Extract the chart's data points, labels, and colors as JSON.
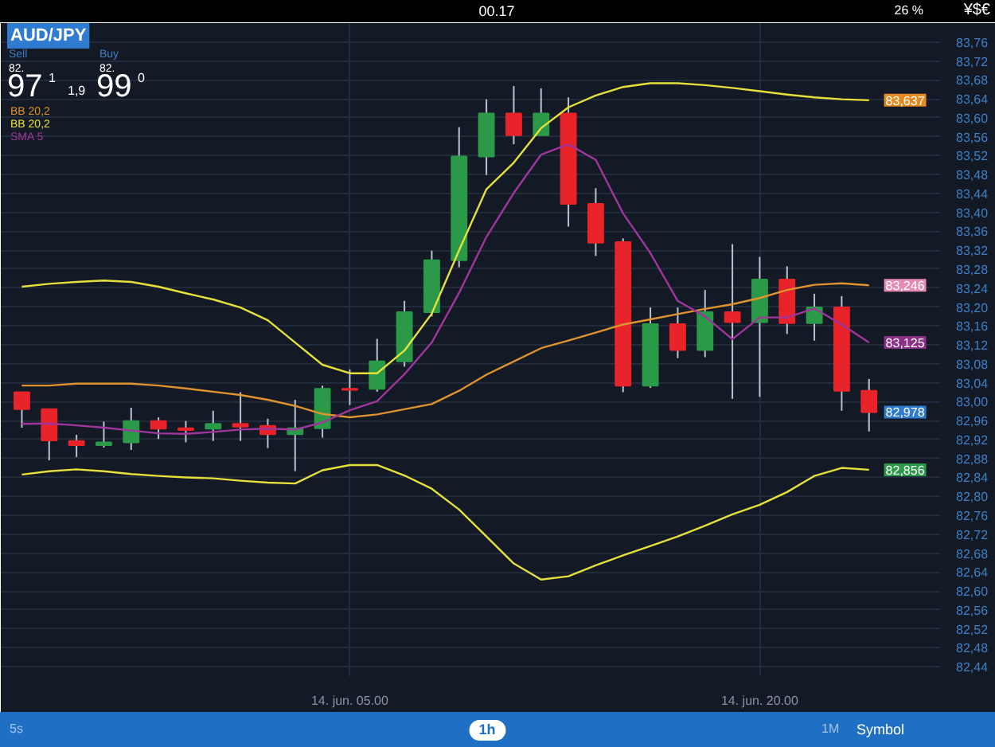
{
  "chart_data": {
    "type": "candlestick",
    "title": "AUD/JPY",
    "categories": [
      null,
      null,
      null,
      null,
      null,
      null,
      null,
      null,
      null,
      null,
      null,
      null,
      "14. jun. 05.00",
      null,
      null,
      null,
      null,
      null,
      null,
      null,
      null,
      null,
      null,
      null,
      null,
      null,
      null,
      "14. jun. 20.00",
      null,
      null,
      null,
      null
    ],
    "ohlc": [
      [
        83.02,
        83.02,
        82.945,
        82.984
      ],
      [
        82.984,
        82.984,
        82.876,
        82.918
      ],
      [
        82.917,
        82.93,
        82.883,
        82.908
      ],
      [
        82.908,
        82.958,
        82.903,
        82.914
      ],
      [
        82.914,
        82.987,
        82.898,
        82.959
      ],
      [
        82.959,
        82.967,
        82.921,
        82.943
      ],
      [
        82.944,
        82.959,
        82.914,
        82.94
      ],
      [
        82.943,
        82.981,
        82.917,
        82.953
      ],
      [
        82.953,
        83.02,
        82.917,
        82.947
      ],
      [
        82.949,
        82.964,
        82.902,
        82.931
      ],
      [
        82.931,
        83.004,
        82.853,
        82.944
      ],
      [
        82.944,
        83.034,
        82.924,
        83.027
      ],
      [
        83.027,
        83.068,
        82.993,
        83.025
      ],
      [
        83.027,
        83.133,
        83.021,
        83.085
      ],
      [
        83.085,
        83.213,
        83.074,
        83.189
      ],
      [
        83.189,
        83.319,
        83.18,
        83.299
      ],
      [
        83.299,
        83.58,
        83.284,
        83.518
      ],
      [
        83.518,
        83.639,
        83.479,
        83.609
      ],
      [
        83.609,
        83.667,
        83.544,
        83.563
      ],
      [
        83.563,
        83.662,
        83.563,
        83.609
      ],
      [
        83.609,
        83.643,
        83.37,
        83.418
      ],
      [
        83.418,
        83.451,
        83.308,
        83.336
      ],
      [
        83.337,
        83.345,
        83.02,
        83.034
      ],
      [
        83.034,
        83.199,
        83.029,
        83.164
      ],
      [
        83.164,
        83.199,
        83.092,
        83.109
      ],
      [
        83.109,
        83.236,
        83.094,
        83.189
      ],
      [
        83.189,
        83.333,
        83.006,
        83.168
      ],
      [
        83.168,
        83.306,
        83.01,
        83.258
      ],
      [
        83.258,
        83.286,
        83.143,
        83.166
      ],
      [
        83.166,
        83.228,
        83.129,
        83.199
      ],
      [
        83.199,
        83.223,
        82.981,
        83.023
      ],
      [
        83.023,
        83.048,
        82.937,
        82.978
      ]
    ],
    "colors": [
      "#e8232a",
      "#e8232a",
      "#e8232a",
      "#2a9a48",
      "#2a9a48",
      "#e8232a",
      "#e8232a",
      "#2a9a48",
      "#e8232a",
      "#e8232a",
      "#2a9a48",
      "#2a9a48",
      "#e8232a",
      "#2a9a48",
      "#2a9a48",
      "#2a9a48",
      "#2a9a48",
      "#2a9a48",
      "#e8232a",
      "#2a9a48",
      "#e8232a",
      "#e8232a",
      "#e8232a",
      "#2a9a48",
      "#e8232a",
      "#2a9a48",
      "#e8232a",
      "#2a9a48",
      "#e8232a",
      "#2a9a48",
      "#e8232a",
      "#e8232a"
    ],
    "series": [
      {
        "name": "BB 20,2",
        "type": "line",
        "color": "#e0922e",
        "values": [
          83.034,
          83.034,
          83.038,
          83.038,
          83.038,
          83.034,
          83.028,
          83.021,
          83.014,
          83.004,
          82.991,
          82.974,
          82.967,
          82.973,
          82.984,
          82.995,
          83.023,
          83.057,
          83.085,
          83.113,
          83.129,
          83.146,
          83.163,
          83.174,
          83.185,
          83.196,
          83.206,
          83.219,
          83.236,
          83.247,
          83.25,
          83.246
        ]
      },
      {
        "name": "BB 20,2",
        "type": "line",
        "color": "#e6e03a",
        "values": [
          83.243,
          83.249,
          83.253,
          83.256,
          83.253,
          83.243,
          83.229,
          83.216,
          83.199,
          83.172,
          83.125,
          83.078,
          83.06,
          83.06,
          83.108,
          83.186,
          83.32,
          83.449,
          83.505,
          83.578,
          83.622,
          83.647,
          83.665,
          83.673,
          83.673,
          83.669,
          83.663,
          83.656,
          83.649,
          83.643,
          83.639,
          83.637
        ]
      },
      {
        "type": "line",
        "color": "#e6e03a",
        "values": [
          82.846,
          82.853,
          82.857,
          82.853,
          82.847,
          82.843,
          82.84,
          82.838,
          82.833,
          82.829,
          82.827,
          82.855,
          82.866,
          82.866,
          82.844,
          82.816,
          82.772,
          82.715,
          82.658,
          82.624,
          82.631,
          82.654,
          82.675,
          82.695,
          82.715,
          82.738,
          82.762,
          82.782,
          82.809,
          82.843,
          82.86,
          82.856
        ]
      },
      {
        "name": "SMA 5",
        "type": "line",
        "color": "#a0359c",
        "values": [
          82.953,
          82.954,
          82.95,
          82.945,
          82.939,
          82.933,
          82.932,
          82.936,
          82.941,
          82.943,
          82.941,
          82.956,
          82.982,
          83.001,
          83.058,
          83.125,
          83.23,
          83.348,
          83.441,
          83.522,
          83.544,
          83.511,
          83.398,
          83.314,
          83.213,
          83.18,
          83.132,
          83.178,
          83.178,
          83.197,
          83.163,
          83.125
        ]
      }
    ],
    "ylim": [
      82.42,
      83.8
    ],
    "yticks": [
      {
        "value": 82.44,
        "label": "82,44"
      },
      {
        "value": 82.48,
        "label": "82,48"
      },
      {
        "value": 82.52,
        "label": "82,52"
      },
      {
        "value": 82.56,
        "label": "82,56"
      },
      {
        "value": 82.6,
        "label": "82,60"
      },
      {
        "value": 82.64,
        "label": "82,64"
      },
      {
        "value": 82.68,
        "label": "82,68"
      },
      {
        "value": 82.72,
        "label": "82,72"
      },
      {
        "value": 82.76,
        "label": "82,76"
      },
      {
        "value": 82.8,
        "label": "82,80"
      },
      {
        "value": 82.84,
        "label": "82,84"
      },
      {
        "value": 82.88,
        "label": "82,88"
      },
      {
        "value": 82.92,
        "label": "82,92"
      },
      {
        "value": 82.96,
        "label": "82,96"
      },
      {
        "value": 83.0,
        "label": "83,00"
      },
      {
        "value": 83.04,
        "label": "83,04"
      },
      {
        "value": 83.08,
        "label": "83,08"
      },
      {
        "value": 83.12,
        "label": "83,12"
      },
      {
        "value": 83.16,
        "label": "83,16"
      },
      {
        "value": 83.2,
        "label": "83,20"
      },
      {
        "value": 83.24,
        "label": "83,24"
      },
      {
        "value": 83.28,
        "label": "83,28"
      },
      {
        "value": 83.32,
        "label": "83,32"
      },
      {
        "value": 83.36,
        "label": "83,36"
      },
      {
        "value": 83.4,
        "label": "83,40"
      },
      {
        "value": 83.44,
        "label": "83,44"
      },
      {
        "value": 83.48,
        "label": "83,48"
      },
      {
        "value": 83.52,
        "label": "83,52"
      },
      {
        "value": 83.56,
        "label": "83,56"
      },
      {
        "value": 83.6,
        "label": "83,60"
      },
      {
        "value": 83.64,
        "label": "83,64"
      },
      {
        "value": 83.68,
        "label": "83,68"
      },
      {
        "value": 83.72,
        "label": "83,72"
      },
      {
        "value": 83.76,
        "label": "83,76"
      }
    ],
    "grid": true,
    "annotations": [
      "Sell",
      "82.",
      "97",
      "1",
      "Buy",
      "82.",
      "99",
      "0",
      "1,9",
      "00.17",
      "26 %",
      "¥$€",
      "5s",
      "1h",
      "1M",
      "Symbol",
      {
        "text": "83,637",
        "y": 83.637
      },
      {
        "text": "83,246",
        "y": 83.246
      },
      {
        "text": "83,125",
        "y": 83.125
      },
      {
        "text": "82,978",
        "y": 82.978
      },
      {
        "text": "82,856",
        "y": 82.856
      }
    ]
  }
}
